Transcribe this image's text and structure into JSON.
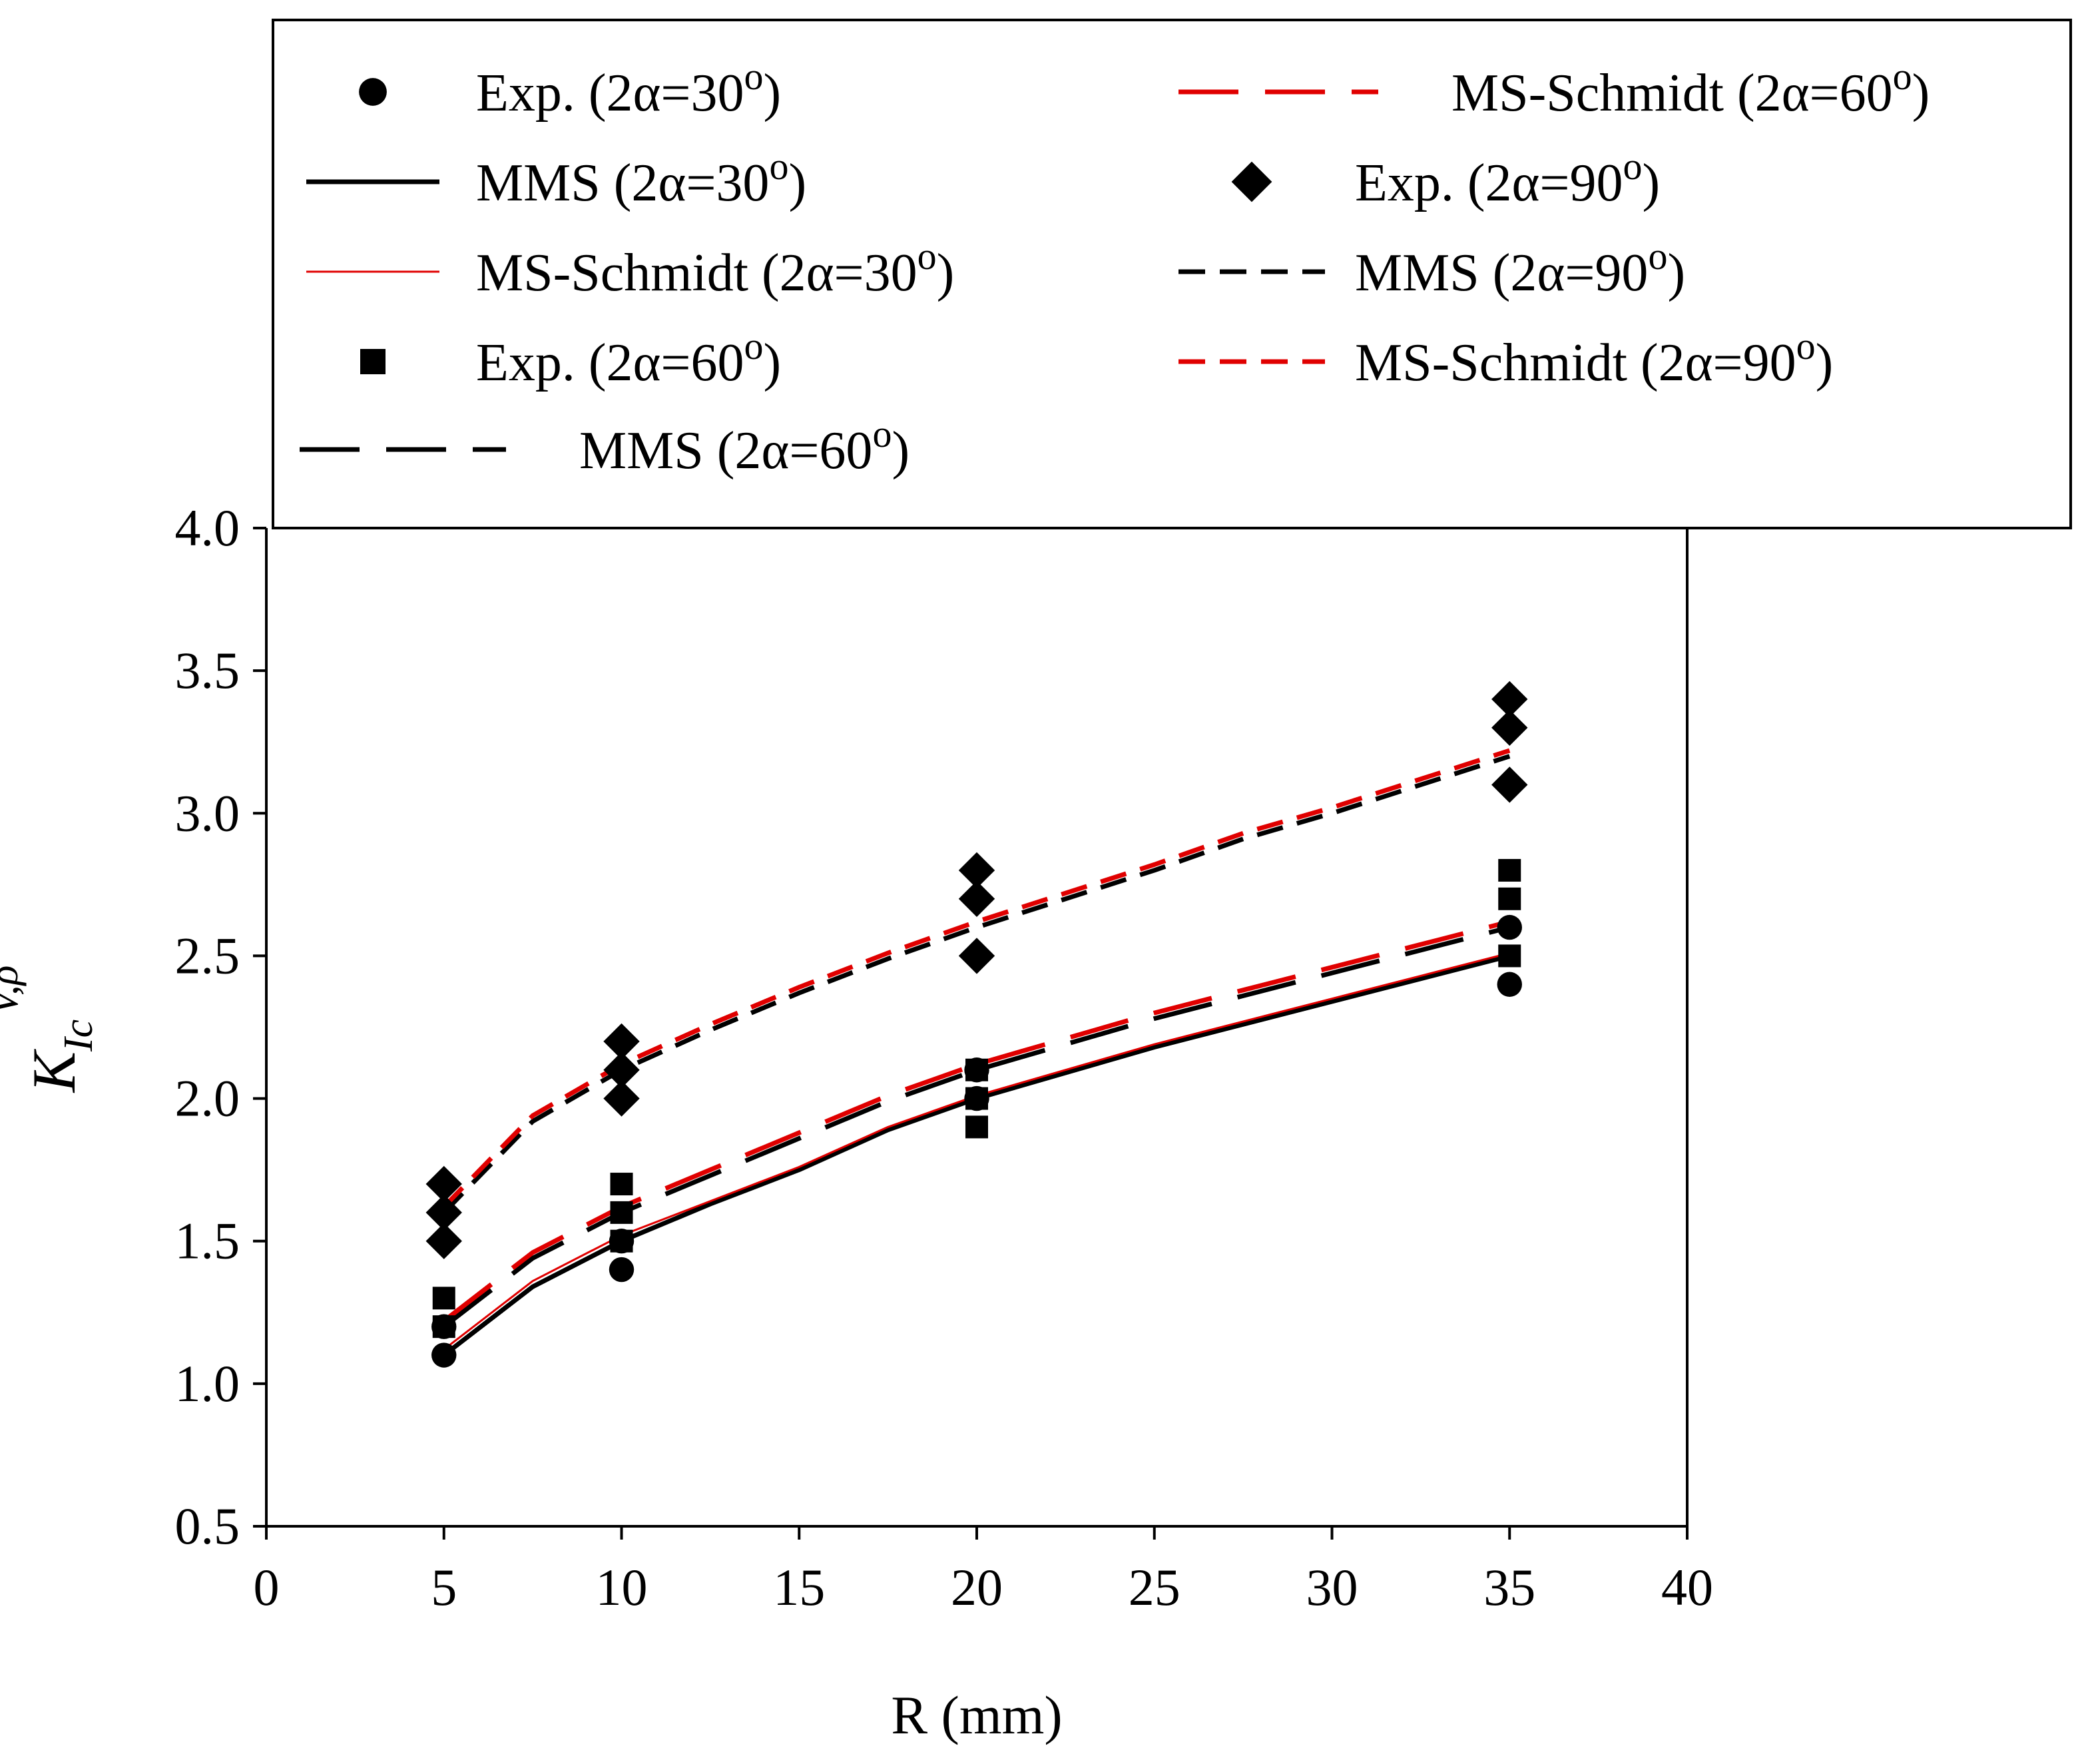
{
  "chart_data": {
    "type": "scatter",
    "xlabel": "R (mm)",
    "ylabel": {
      "main": "K",
      "sub": "Ic",
      "sup": "V,ρ"
    },
    "xlim": [
      0,
      40
    ],
    "ylim": [
      0.5,
      4.0
    ],
    "xticks": [
      "0",
      "5",
      "10",
      "15",
      "20",
      "25",
      "30",
      "35",
      "40"
    ],
    "yticks": [
      "0.5",
      "1.0",
      "1.5",
      "2.0",
      "2.5",
      "3.0",
      "3.5",
      "4.0"
    ],
    "grid": false,
    "legend_position": "top",
    "series": [
      {
        "name": "Exp. (2α=30",
        "degree": "o",
        "close": ")",
        "kind": "points",
        "marker": "circle",
        "color": "#000000",
        "x": [
          5,
          5,
          10,
          10,
          20,
          20,
          35,
          35
        ],
        "y": [
          1.1,
          1.2,
          1.4,
          1.5,
          2.0,
          2.1,
          2.4,
          2.6
        ]
      },
      {
        "name": "MMS (2α=30",
        "degree": "o",
        "close": ")",
        "kind": "line",
        "dash": "solid",
        "width": 7,
        "color": "#000000",
        "x": [
          5,
          7.5,
          10,
          12.5,
          15,
          17.5,
          20,
          22.5,
          25,
          27.5,
          30,
          32.5,
          35
        ],
        "y": [
          1.1,
          1.34,
          1.5,
          1.63,
          1.75,
          1.89,
          2.0,
          2.09,
          2.18,
          2.26,
          2.34,
          2.42,
          2.5
        ]
      },
      {
        "name": "MS-Schmidt (2α=30",
        "degree": "o",
        "close": ")",
        "kind": "line",
        "dash": "solid",
        "width": 3,
        "color": "#e00000",
        "x": [
          5,
          7.5,
          10,
          12.5,
          15,
          17.5,
          20,
          22.5,
          25,
          27.5,
          30,
          32.5,
          35
        ],
        "y": [
          1.12,
          1.36,
          1.52,
          1.64,
          1.76,
          1.9,
          2.01,
          2.1,
          2.19,
          2.27,
          2.35,
          2.43,
          2.51
        ]
      },
      {
        "name": "Exp. (2α=60",
        "degree": "o",
        "close": ")",
        "kind": "points",
        "marker": "square",
        "color": "#000000",
        "x": [
          5,
          5,
          10,
          10,
          10,
          20,
          20,
          20,
          35,
          35,
          35
        ],
        "y": [
          1.2,
          1.3,
          1.5,
          1.6,
          1.7,
          1.9,
          2.0,
          2.1,
          2.5,
          2.7,
          2.8
        ]
      },
      {
        "name": "MMS (2α=60",
        "degree": "o",
        "close": ")",
        "kind": "line",
        "dash": "longdash",
        "width": 7,
        "color": "#000000",
        "x": [
          5,
          7.5,
          10,
          12.5,
          15,
          17.5,
          20,
          22.5,
          25,
          27.5,
          30,
          32.5,
          35
        ],
        "y": [
          1.2,
          1.44,
          1.6,
          1.73,
          1.86,
          1.99,
          2.1,
          2.19,
          2.28,
          2.36,
          2.44,
          2.52,
          2.6
        ]
      },
      {
        "name": "MS-Schmidt (2α=60",
        "degree": "o",
        "close": ")",
        "kind": "line",
        "dash": "longdash",
        "width": 7,
        "color": "#e00000",
        "x": [
          5,
          7.5,
          10,
          12.5,
          15,
          17.5,
          20,
          22.5,
          25,
          27.5,
          30,
          32.5,
          35
        ],
        "y": [
          1.22,
          1.46,
          1.62,
          1.75,
          1.88,
          2.01,
          2.12,
          2.21,
          2.3,
          2.38,
          2.46,
          2.54,
          2.62
        ]
      },
      {
        "name": "Exp. (2α=90",
        "degree": "o",
        "close": ")",
        "kind": "points",
        "marker": "diamond",
        "color": "#000000",
        "x": [
          5,
          5,
          5,
          10,
          10,
          10,
          20,
          20,
          20,
          35,
          35,
          35
        ],
        "y": [
          1.5,
          1.6,
          1.7,
          2.0,
          2.1,
          2.2,
          2.5,
          2.7,
          2.8,
          3.1,
          3.3,
          3.4
        ]
      },
      {
        "name": "MMS (2α=90",
        "degree": "o",
        "close": ")",
        "kind": "line",
        "dash": "shortdash",
        "width": 7,
        "color": "#000000",
        "x": [
          5,
          7.5,
          10,
          12.5,
          15,
          17.5,
          20,
          22.5,
          25,
          27.5,
          30,
          32.5,
          35
        ],
        "y": [
          1.6,
          1.92,
          2.1,
          2.24,
          2.37,
          2.49,
          2.6,
          2.7,
          2.8,
          2.91,
          3.0,
          3.1,
          3.2
        ]
      },
      {
        "name": "MS-Schmidt (2α=90",
        "degree": "o",
        "close": ")",
        "kind": "line",
        "dash": "shortdash",
        "width": 7,
        "color": "#e00000",
        "x": [
          5,
          7.5,
          10,
          12.5,
          15,
          17.5,
          20,
          22.5,
          25,
          27.5,
          30,
          32.5,
          35
        ],
        "y": [
          1.62,
          1.94,
          2.12,
          2.26,
          2.39,
          2.51,
          2.62,
          2.72,
          2.82,
          2.93,
          3.02,
          3.12,
          3.22
        ]
      }
    ]
  }
}
